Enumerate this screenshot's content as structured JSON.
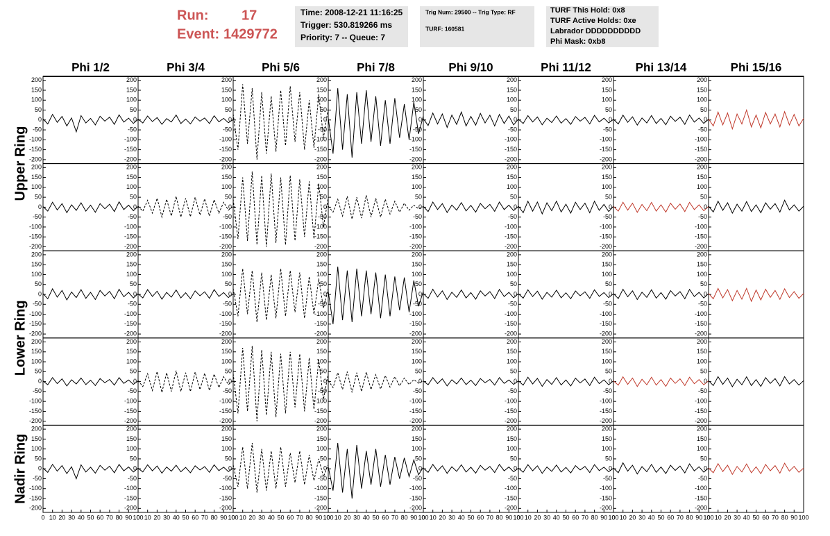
{
  "header": {
    "run_label": "Run:",
    "run": "17",
    "event_label": "Event:",
    "event": "1429772",
    "box1": [
      "Time: 2008-12-21 11:16:25",
      "Trigger: 530.819266 ms",
      "Priority: 7 -- Queue: 7"
    ],
    "box2": [
      "Trig Num: 29500 -- Trig Type: RF",
      "TURF: 160581"
    ],
    "box3": [
      "TURF This Hold: 0x8",
      "TURF Active Holds: 0xe",
      "Labrador DDDDDDDDDD",
      "Phi Mask: 0xb8"
    ]
  },
  "chart_data": {
    "type": "line",
    "columns": [
      "Phi 1/2",
      "Phi 3/4",
      "Phi 5/6",
      "Phi 7/8",
      "Phi 9/10",
      "Phi 11/12",
      "Phi 13/14",
      "Phi 15/16"
    ],
    "ring_labels": [
      "Upper Ring",
      "Lower Ring",
      "Nadir Ring"
    ],
    "ylim": [
      -220,
      220
    ],
    "yticks": [
      200,
      150,
      100,
      50,
      0,
      -50,
      -100,
      -150,
      -200
    ],
    "xlim": [
      0,
      100
    ],
    "xticks": [
      0,
      10,
      20,
      30,
      40,
      50,
      60,
      70,
      80,
      90,
      100
    ],
    "x": [
      0,
      5,
      10,
      15,
      20,
      25,
      30,
      35,
      40,
      45,
      50,
      55,
      60,
      65,
      70,
      75,
      80,
      85,
      90,
      95,
      100
    ],
    "panels": [
      [
        {
          "color": "#000000",
          "style": "solid",
          "values": [
            5,
            -20,
            28,
            -12,
            18,
            -30,
            10,
            -60,
            22,
            -15,
            8,
            -25,
            19,
            -6,
            14,
            -22,
            26,
            -11,
            9,
            -17,
            3
          ]
        },
        {
          "color": "#000000",
          "style": "solid",
          "values": [
            4,
            -15,
            20,
            -8,
            12,
            -22,
            7,
            -10,
            25,
            -18,
            5,
            -20,
            15,
            -6,
            10,
            -18,
            21,
            -9,
            8,
            -14,
            2
          ]
        },
        {
          "color": "#000000",
          "style": "dashed",
          "values": [
            30,
            -150,
            180,
            -120,
            160,
            -200,
            140,
            -170,
            120,
            -160,
            150,
            -130,
            170,
            -110,
            140,
            -150,
            100,
            -140,
            130,
            -90,
            60
          ]
        },
        {
          "color": "#000000",
          "style": "solid",
          "values": [
            10,
            -170,
            160,
            -150,
            130,
            -190,
            140,
            -120,
            150,
            -110,
            120,
            -130,
            100,
            -120,
            110,
            -90,
            80,
            -100,
            90,
            -70,
            20
          ]
        },
        {
          "color": "#000000",
          "style": "solid",
          "values": [
            6,
            -28,
            35,
            -20,
            30,
            -38,
            25,
            -22,
            40,
            -30,
            18,
            -26,
            33,
            -15,
            24,
            -30,
            28,
            -18,
            20,
            -25,
            5
          ]
        },
        {
          "color": "#000000",
          "style": "solid",
          "values": [
            4,
            -18,
            22,
            -10,
            15,
            -24,
            9,
            -13,
            20,
            -16,
            7,
            -22,
            17,
            -6,
            13,
            -20,
            23,
            -10,
            9,
            -15,
            3
          ]
        },
        {
          "color": "#000000",
          "style": "solid",
          "values": [
            3,
            -20,
            24,
            -12,
            16,
            -26,
            10,
            -15,
            22,
            -18,
            8,
            -24,
            19,
            -7,
            14,
            -22,
            25,
            -11,
            10,
            -17,
            4
          ]
        },
        {
          "color": "#c0392b",
          "style": "solid",
          "values": [
            5,
            -30,
            40,
            -25,
            35,
            -45,
            30,
            -20,
            50,
            -35,
            25,
            -40,
            38,
            -20,
            30,
            -35,
            42,
            -25,
            28,
            -30,
            8
          ]
        }
      ],
      [
        {
          "color": "#000000",
          "style": "solid",
          "values": [
            3,
            -20,
            25,
            -14,
            18,
            -28,
            12,
            -16,
            22,
            -20,
            10,
            -26,
            18,
            -8,
            15,
            -22,
            27,
            -12,
            10,
            -18,
            4
          ]
        },
        {
          "color": "#000000",
          "style": "dashed",
          "values": [
            5,
            -20,
            35,
            -30,
            45,
            -50,
            40,
            -45,
            55,
            -50,
            45,
            -48,
            50,
            -40,
            42,
            -45,
            38,
            -30,
            25,
            -15,
            5
          ]
        },
        {
          "color": "#000000",
          "style": "dashed",
          "values": [
            40,
            -160,
            150,
            -170,
            180,
            -190,
            160,
            -200,
            170,
            -180,
            150,
            -190,
            160,
            -170,
            140,
            -150,
            130,
            -160,
            120,
            -100,
            50
          ]
        },
        {
          "color": "#000000",
          "style": "dashed",
          "values": [
            5,
            -25,
            40,
            -45,
            55,
            -60,
            50,
            -55,
            60,
            -50,
            45,
            -50,
            40,
            -35,
            30,
            -25,
            20,
            -15,
            10,
            -8,
            3
          ]
        },
        {
          "color": "#000000",
          "style": "solid",
          "values": [
            4,
            -22,
            26,
            -12,
            18,
            -27,
            11,
            -15,
            23,
            -19,
            9,
            -25,
            19,
            -8,
            14,
            -21,
            26,
            -12,
            10,
            -17,
            4
          ]
        },
        {
          "color": "#000000",
          "style": "solid",
          "values": [
            5,
            -28,
            30,
            -20,
            26,
            -34,
            22,
            -18,
            30,
            -24,
            15,
            -30,
            25,
            -12,
            20,
            -28,
            30,
            -16,
            14,
            -22,
            5
          ]
        },
        {
          "color": "#c0392b",
          "style": "solid",
          "values": [
            4,
            -20,
            25,
            -15,
            20,
            -26,
            14,
            -18,
            24,
            -20,
            12,
            -25,
            20,
            -10,
            16,
            -22,
            24,
            -12,
            12,
            -18,
            4
          ]
        },
        {
          "color": "#000000",
          "style": "solid",
          "values": [
            5,
            -24,
            30,
            -16,
            22,
            -30,
            15,
            -20,
            28,
            -22,
            12,
            -28,
            22,
            -10,
            18,
            -25,
            35,
            -14,
            12,
            -20,
            5
          ]
        }
      ],
      [
        {
          "color": "#000000",
          "style": "solid",
          "values": [
            4,
            -22,
            28,
            -14,
            20,
            -28,
            12,
            -16,
            24,
            -20,
            10,
            -26,
            20,
            -8,
            15,
            -22,
            26,
            -12,
            10,
            -18,
            4
          ]
        },
        {
          "color": "#000000",
          "style": "solid",
          "values": [
            3,
            -18,
            24,
            -10,
            16,
            -24,
            10,
            -14,
            22,
            -18,
            8,
            -22,
            18,
            -7,
            13,
            -20,
            24,
            -10,
            9,
            -16,
            3
          ]
        },
        {
          "color": "#000000",
          "style": "dashed",
          "values": [
            30,
            -110,
            130,
            -100,
            120,
            -140,
            110,
            -130,
            100,
            -120,
            130,
            -110,
            120,
            -90,
            110,
            -120,
            90,
            -100,
            80,
            -70,
            30
          ]
        },
        {
          "color": "#000000",
          "style": "solid",
          "values": [
            15,
            -150,
            140,
            -130,
            120,
            -140,
            130,
            -110,
            120,
            -100,
            110,
            -120,
            100,
            -110,
            90,
            -80,
            85,
            -90,
            70,
            -60,
            15
          ]
        },
        {
          "color": "#000000",
          "style": "solid",
          "values": [
            4,
            -20,
            26,
            -13,
            18,
            -26,
            11,
            -15,
            22,
            -18,
            9,
            -24,
            18,
            -8,
            14,
            -21,
            25,
            -11,
            10,
            -17,
            4
          ]
        },
        {
          "color": "#000000",
          "style": "solid",
          "values": [
            3,
            -19,
            23,
            -11,
            16,
            -24,
            10,
            -14,
            21,
            -17,
            8,
            -22,
            17,
            -7,
            13,
            -20,
            23,
            -10,
            9,
            -16,
            3
          ]
        },
        {
          "color": "#000000",
          "style": "solid",
          "values": [
            4,
            -21,
            26,
            -12,
            18,
            -26,
            11,
            -15,
            23,
            -19,
            9,
            -24,
            19,
            -8,
            14,
            -22,
            25,
            -11,
            10,
            -18,
            4
          ]
        },
        {
          "color": "#c0392b",
          "style": "solid",
          "values": [
            5,
            -22,
            30,
            -18,
            24,
            -32,
            20,
            -24,
            30,
            -35,
            22,
            -28,
            26,
            -15,
            20,
            -25,
            28,
            -16,
            14,
            -20,
            5
          ]
        }
      ],
      [
        {
          "color": "#000000",
          "style": "solid",
          "values": [
            3,
            -16,
            20,
            -10,
            14,
            -22,
            9,
            -12,
            18,
            -15,
            7,
            -20,
            15,
            -6,
            11,
            -18,
            20,
            -9,
            8,
            -14,
            3
          ]
        },
        {
          "color": "#000000",
          "style": "dashed",
          "values": [
            5,
            -25,
            40,
            -45,
            50,
            -55,
            45,
            -50,
            55,
            -50,
            45,
            -50,
            48,
            -40,
            42,
            -45,
            38,
            -30,
            25,
            -15,
            5
          ]
        },
        {
          "color": "#000000",
          "style": "dashed",
          "values": [
            40,
            -160,
            170,
            -150,
            180,
            -200,
            160,
            -170,
            150,
            -180,
            140,
            -160,
            150,
            -130,
            140,
            -150,
            120,
            -140,
            110,
            -90,
            40
          ]
        },
        {
          "color": "#000000",
          "style": "dashed",
          "values": [
            5,
            -30,
            45,
            -40,
            50,
            -55,
            45,
            -50,
            48,
            -40,
            35,
            -38,
            30,
            -28,
            25,
            -22,
            18,
            -15,
            10,
            -8,
            3
          ]
        },
        {
          "color": "#000000",
          "style": "solid",
          "values": [
            3,
            -16,
            20,
            -10,
            14,
            -22,
            9,
            -12,
            18,
            -15,
            7,
            -20,
            15,
            -6,
            11,
            -18,
            20,
            -9,
            8,
            -14,
            3
          ]
        },
        {
          "color": "#000000",
          "style": "solid",
          "values": [
            4,
            -18,
            22,
            -12,
            16,
            -24,
            10,
            -14,
            20,
            -17,
            8,
            -22,
            17,
            -7,
            13,
            -20,
            22,
            -10,
            9,
            -16,
            4
          ]
        },
        {
          "color": "#c0392b",
          "style": "solid",
          "values": [
            4,
            -18,
            24,
            -14,
            18,
            -25,
            12,
            -16,
            22,
            -18,
            10,
            -24,
            18,
            -9,
            14,
            -20,
            22,
            -11,
            10,
            -16,
            4
          ]
        },
        {
          "color": "#000000",
          "style": "solid",
          "values": [
            5,
            -20,
            25,
            -14,
            18,
            -26,
            12,
            -16,
            24,
            -20,
            10,
            -24,
            20,
            -9,
            15,
            -22,
            25,
            -12,
            10,
            -18,
            5
          ]
        }
      ],
      [
        {
          "color": "#000000",
          "style": "solid",
          "values": [
            3,
            -18,
            22,
            -12,
            16,
            -24,
            10,
            -50,
            20,
            -16,
            8,
            -22,
            17,
            -7,
            13,
            -20,
            22,
            -10,
            9,
            -16,
            3
          ]
        },
        {
          "color": "#000000",
          "style": "solid",
          "values": [
            3,
            -16,
            20,
            -10,
            14,
            -22,
            9,
            -12,
            18,
            -15,
            7,
            -20,
            15,
            -6,
            11,
            -18,
            20,
            -9,
            8,
            -14,
            3
          ]
        },
        {
          "color": "#000000",
          "style": "dashed",
          "values": [
            20,
            -90,
            110,
            -100,
            130,
            -120,
            100,
            -110,
            90,
            -100,
            110,
            -90,
            80,
            -70,
            90,
            -80,
            70,
            -60,
            50,
            -40,
            20
          ]
        },
        {
          "color": "#000000",
          "style": "solid",
          "values": [
            10,
            -110,
            130,
            -120,
            100,
            -150,
            120,
            -100,
            90,
            -80,
            100,
            -90,
            70,
            -80,
            60,
            -50,
            55,
            -40,
            45,
            -30,
            8
          ]
        },
        {
          "color": "#000000",
          "style": "solid",
          "values": [
            3,
            -18,
            22,
            -11,
            15,
            -23,
            10,
            -13,
            20,
            -16,
            8,
            -22,
            17,
            -7,
            12,
            -19,
            22,
            -10,
            9,
            -15,
            3
          ]
        },
        {
          "color": "#000000",
          "style": "solid",
          "values": [
            3,
            -17,
            21,
            -10,
            15,
            -23,
            9,
            -13,
            19,
            -16,
            7,
            -21,
            16,
            -6,
            12,
            -19,
            21,
            -9,
            8,
            -15,
            3
          ]
        },
        {
          "color": "#000000",
          "style": "solid",
          "values": [
            4,
            -20,
            30,
            -12,
            18,
            -26,
            11,
            -15,
            22,
            -18,
            9,
            -24,
            18,
            -8,
            14,
            -21,
            25,
            -11,
            10,
            -17,
            4
          ]
        },
        {
          "color": "#c0392b",
          "style": "solid",
          "values": [
            4,
            -20,
            26,
            -14,
            18,
            -28,
            12,
            -16,
            24,
            -20,
            10,
            -25,
            22,
            -10,
            16,
            -22,
            28,
            -12,
            12,
            -18,
            4
          ]
        }
      ]
    ]
  }
}
